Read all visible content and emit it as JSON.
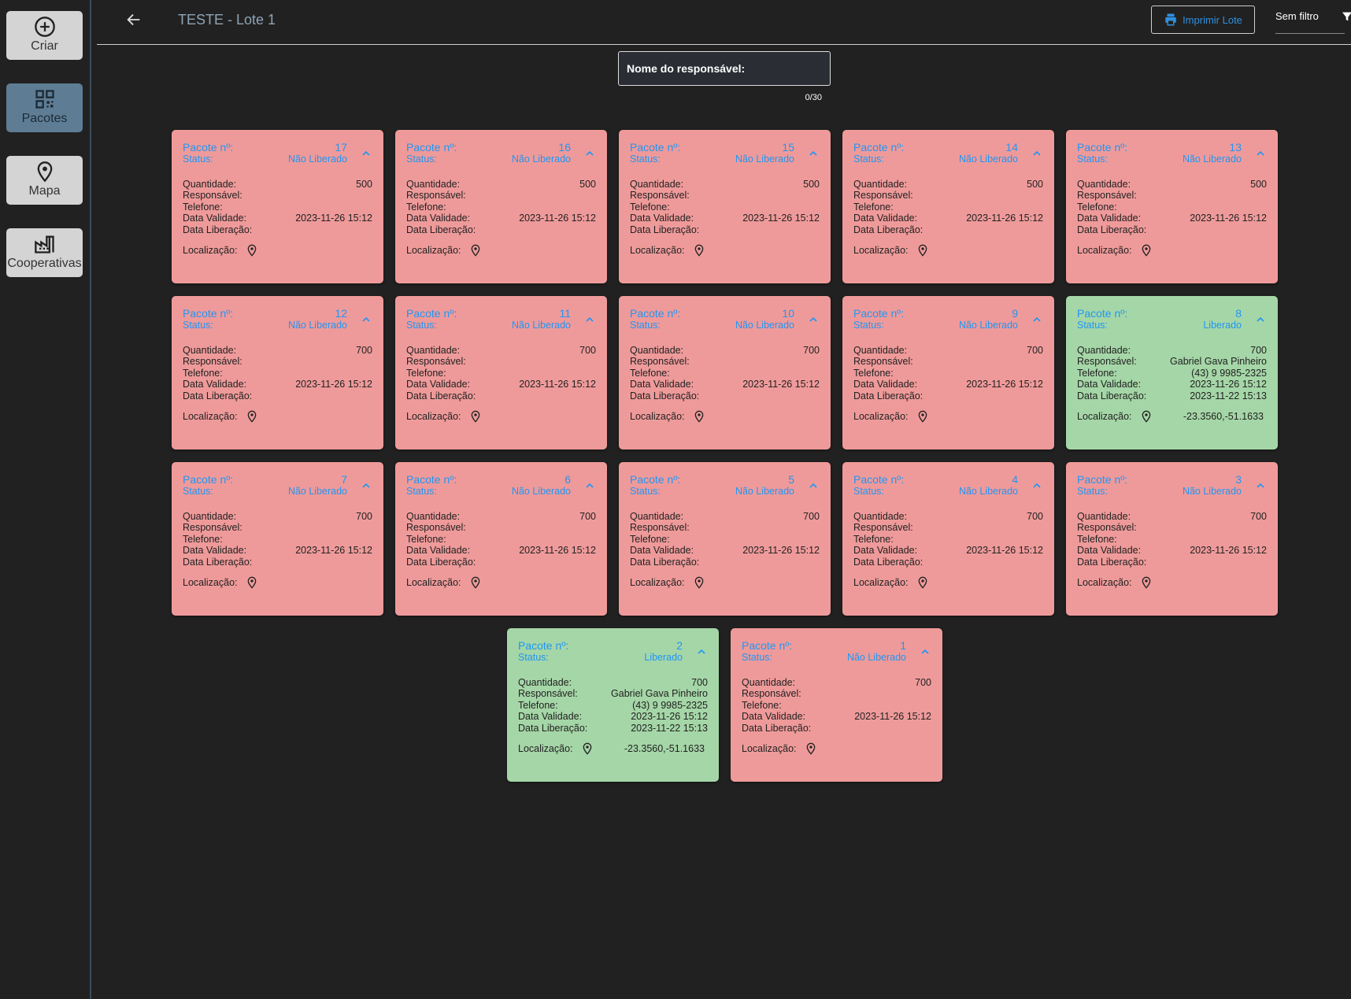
{
  "sidebar": {
    "items": [
      "Criar",
      "Pacotes",
      "Mapa",
      "Cooperativas"
    ]
  },
  "header": {
    "title": "TESTE - Lote 1",
    "print_button": "Imprimir Lote",
    "filter": "Sem filtro"
  },
  "search": {
    "label": "Nome do responsável:",
    "counter": "0/30"
  },
  "labels": {
    "package": "Pacote nº:",
    "status": "Status:",
    "quantity": "Quantidade:",
    "responsible": "Responsável:",
    "phone": "Telefone:",
    "validity": "Data Validade:",
    "release": "Data Liberação:",
    "location": "Localização:"
  },
  "cards": [
    {
      "number": 17,
      "status": "Não Liberado",
      "color": "#ef9a9a",
      "quantity": 500,
      "validity": "2023-11-26 15:12"
    },
    {
      "number": 16,
      "status": "Não Liberado",
      "color": "#ef9a9a",
      "quantity": 500,
      "validity": "2023-11-26 15:12"
    },
    {
      "number": 15,
      "status": "Não Liberado",
      "color": "#ef9a9a",
      "quantity": 500,
      "validity": "2023-11-26 15:12"
    },
    {
      "number": 14,
      "status": "Não Liberado",
      "color": "#ef9a9a",
      "quantity": 500,
      "validity": "2023-11-26 15:12"
    },
    {
      "number": 13,
      "status": "Não Liberado",
      "color": "#ef9a9a",
      "quantity": 500,
      "validity": "2023-11-26 15:12"
    },
    {
      "number": 12,
      "status": "Não Liberado",
      "color": "#ef9a9a",
      "quantity": 700,
      "validity": "2023-11-26 15:12"
    },
    {
      "number": 11,
      "status": "Não Liberado",
      "color": "#ef9a9a",
      "quantity": 700,
      "validity": "2023-11-26 15:12"
    },
    {
      "number": 10,
      "status": "Não Liberado",
      "color": "#ef9a9a",
      "quantity": 700,
      "validity": "2023-11-26 15:12"
    },
    {
      "number": 9,
      "status": "Não Liberado",
      "color": "#ef9a9a",
      "quantity": 700,
      "validity": "2023-11-26 15:12"
    },
    {
      "number": 8,
      "status": "Liberado",
      "color": "#a5d6a7",
      "quantity": 700,
      "responsible": "Gabriel  Gava Pinheiro",
      "phone": "(43) 9 9985-2325",
      "validity": "2023-11-26 15:12",
      "release": "2023-11-22 15:13",
      "location": "-23.3560,-51.1633"
    },
    {
      "number": 7,
      "status": "Não Liberado",
      "color": "#ef9a9a",
      "quantity": 700,
      "validity": "2023-11-26 15:12"
    },
    {
      "number": 6,
      "status": "Não Liberado",
      "color": "#ef9a9a",
      "quantity": 700,
      "validity": "2023-11-26 15:12"
    },
    {
      "number": 5,
      "status": "Não Liberado",
      "color": "#ef9a9a",
      "quantity": 700,
      "validity": "2023-11-26 15:12"
    },
    {
      "number": 4,
      "status": "Não Liberado",
      "color": "#ef9a9a",
      "quantity": 700,
      "validity": "2023-11-26 15:12"
    },
    {
      "number": 3,
      "status": "Não Liberado",
      "color": "#ef9a9a",
      "quantity": 700,
      "validity": "2023-11-26 15:12"
    },
    {
      "number": 2,
      "status": "Liberado",
      "color": "#a5d6a7",
      "quantity": 700,
      "responsible": "Gabriel  Gava Pinheiro",
      "phone": "(43) 9 9985-2325",
      "validity": "2023-11-26 15:12",
      "release": "2023-11-22 15:13",
      "location": "-23.3560,-51.1633"
    },
    {
      "number": 1,
      "status": "Não Liberado",
      "color": "#ef9a9a",
      "quantity": 700,
      "validity": "2023-11-26 15:12"
    }
  ]
}
